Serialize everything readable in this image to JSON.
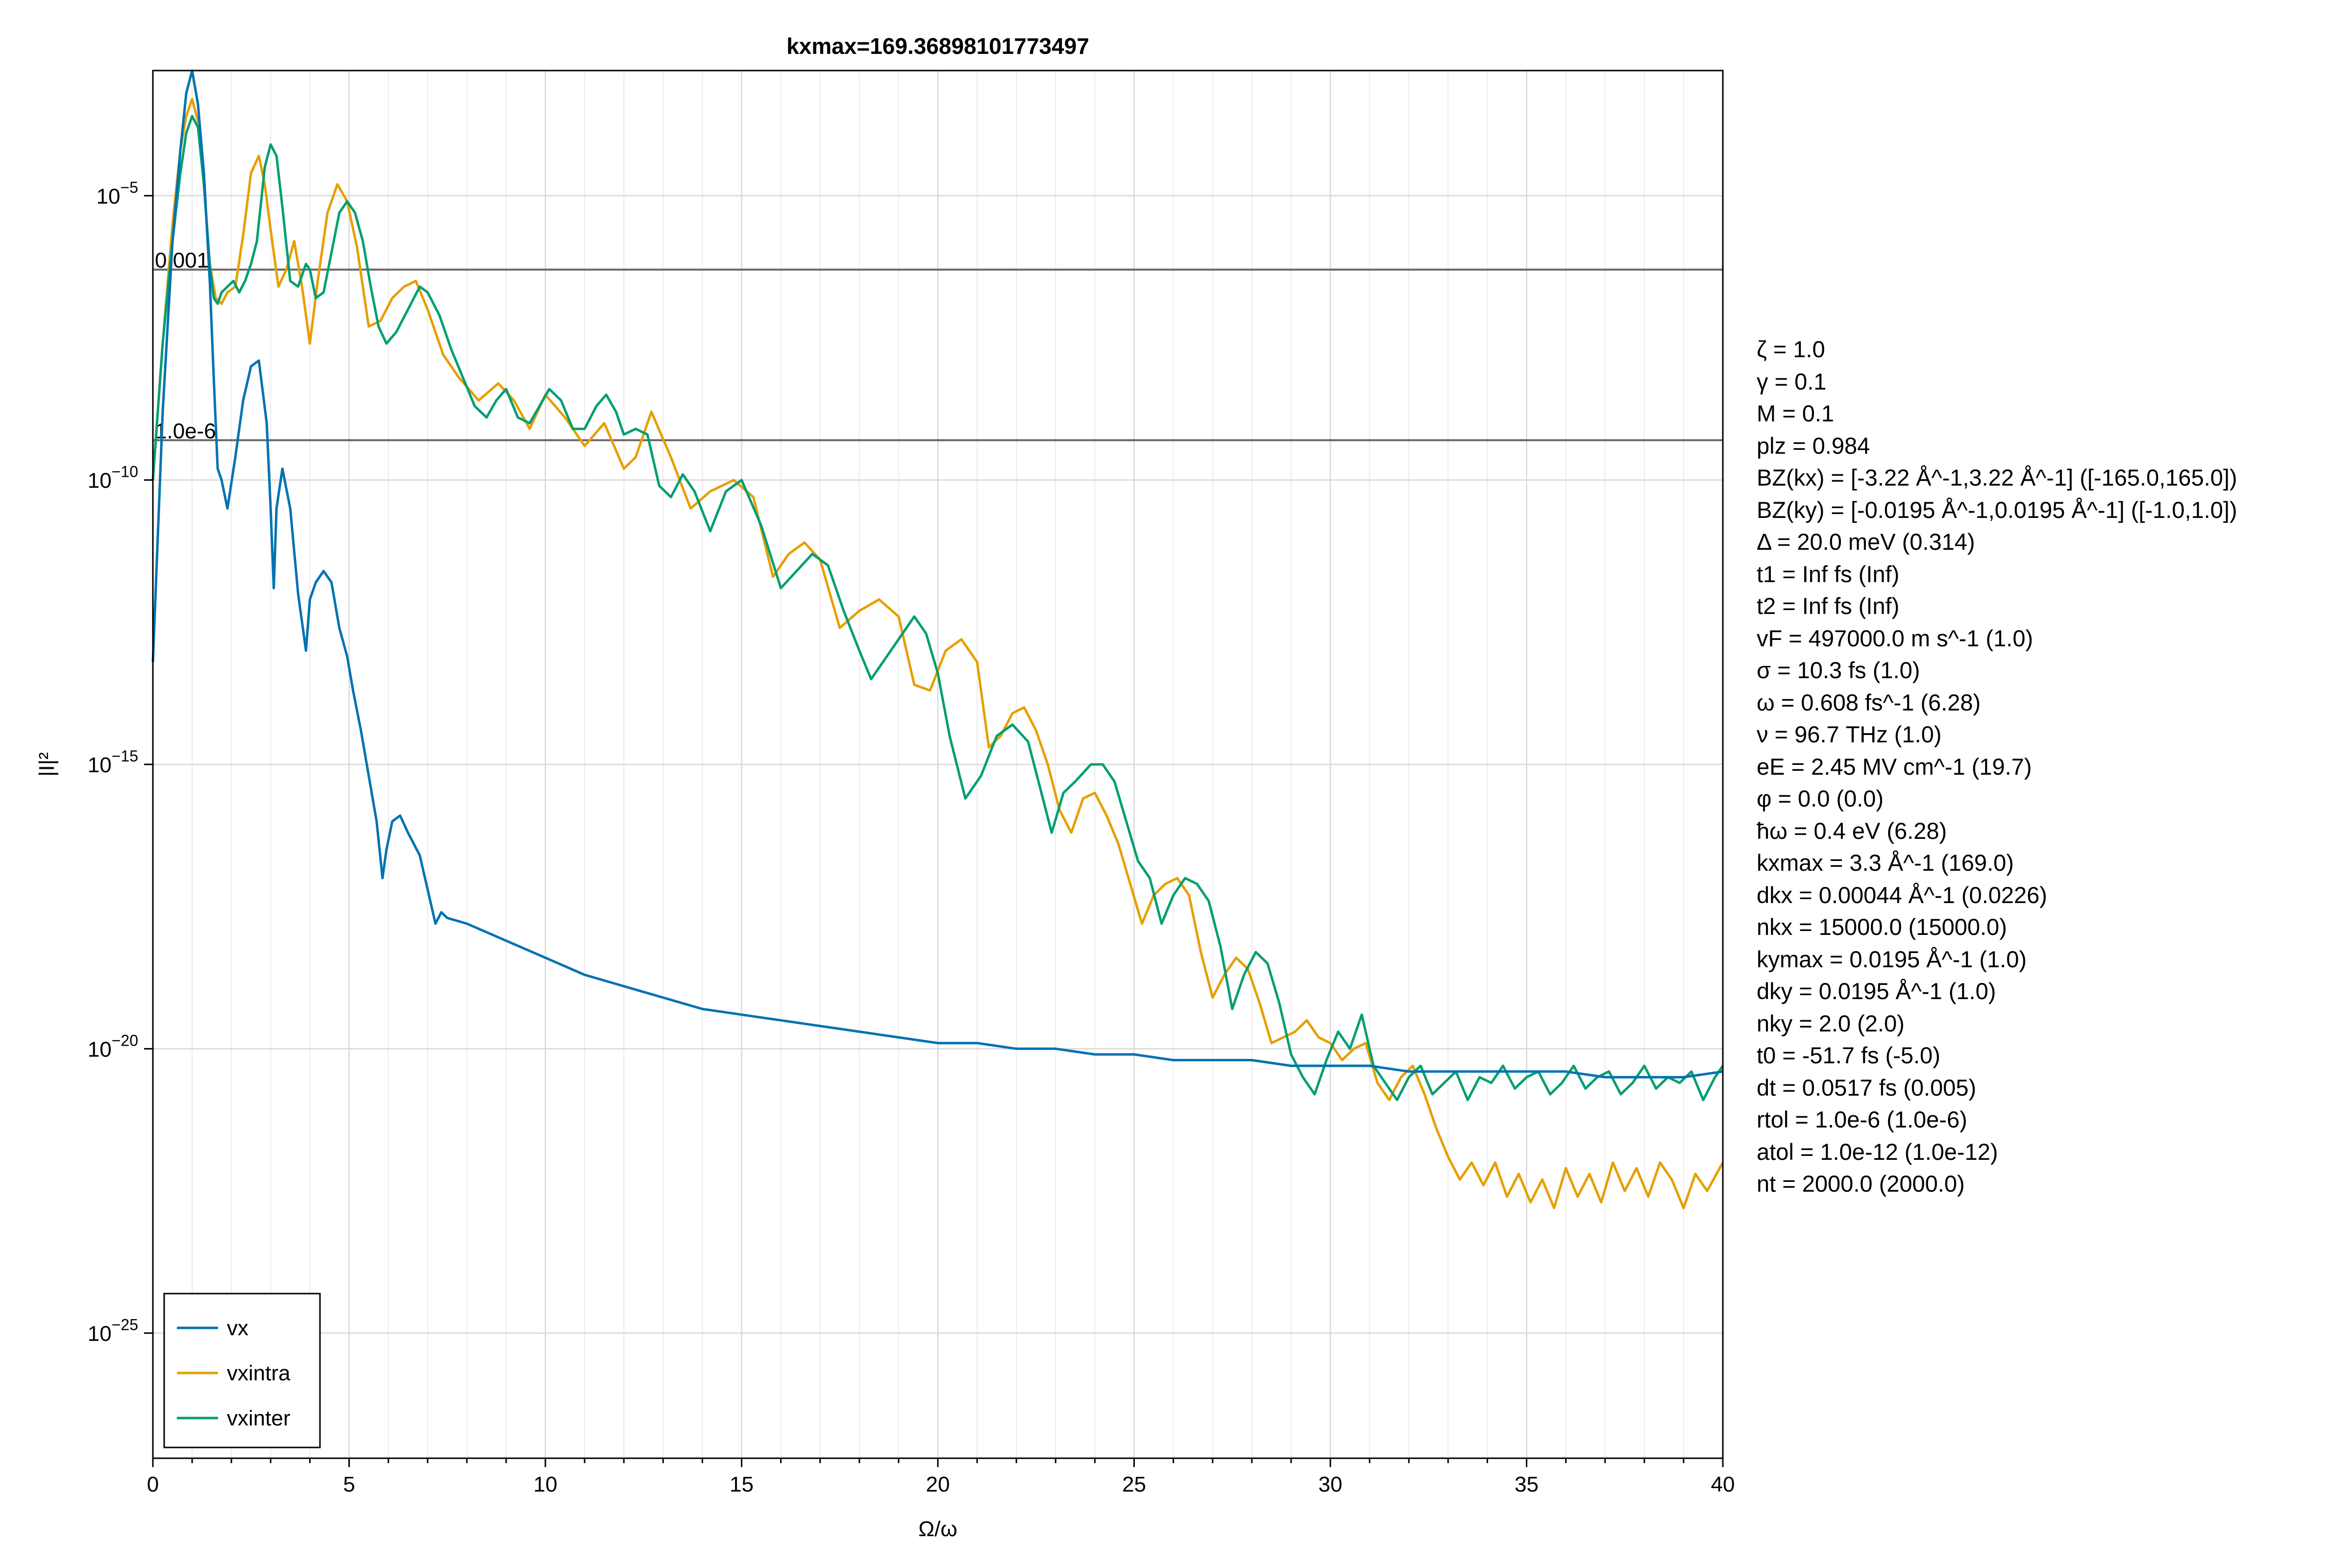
{
  "chart_data": {
    "type": "line",
    "title": "kxmax=169.36898101773497",
    "xlabel": "Ω/ω",
    "ylabel": "|I|²",
    "xlim": [
      0,
      40
    ],
    "ylim_log10": [
      -27.2,
      -2.8
    ],
    "yscale": "log",
    "grid": true,
    "x_ticks": [
      0,
      5,
      10,
      15,
      20,
      25,
      30,
      35,
      40
    ],
    "x_tick_labels": [
      "0",
      "5",
      "10",
      "15",
      "20",
      "25",
      "30",
      "35",
      "40"
    ],
    "y_ticks_log10": [
      -25,
      -20,
      -15,
      -10,
      -5
    ],
    "y_tick_labels": [
      {
        "base": "10",
        "exp": "−25"
      },
      {
        "base": "10",
        "exp": "−20"
      },
      {
        "base": "10",
        "exp": "−15"
      },
      {
        "base": "10",
        "exp": "−10"
      },
      {
        "base": "10",
        "exp": "−5"
      }
    ],
    "hlines": [
      {
        "label": "0.001",
        "log10": -6.3
      },
      {
        "label": "1.0e-6",
        "log10": -9.3
      }
    ],
    "legend_position": "bottom-left",
    "series": [
      {
        "name": "vx",
        "color": "#0072b2",
        "x": [
          0,
          0.25,
          0.5,
          0.7,
          0.85,
          1.0,
          1.15,
          1.3,
          1.45,
          1.55,
          1.65,
          1.75,
          1.9,
          2.1,
          2.3,
          2.5,
          2.7,
          2.9,
          3.0,
          3.08,
          3.15,
          3.3,
          3.5,
          3.7,
          3.9,
          4.0,
          4.15,
          4.35,
          4.55,
          4.75,
          4.95,
          5.1,
          5.3,
          5.5,
          5.7,
          5.85,
          5.95,
          6.1,
          6.3,
          6.5,
          6.8,
          7.0,
          7.2,
          7.35,
          7.5,
          8,
          9,
          10,
          11,
          12,
          13,
          14,
          15,
          16,
          17,
          18,
          19,
          20,
          21,
          22,
          23,
          24,
          25,
          26,
          27,
          28,
          29,
          30,
          31,
          32,
          33,
          34,
          35,
          36,
          37,
          38,
          39,
          40
        ],
        "log10": [
          -13.2,
          -8.8,
          -5.8,
          -4.2,
          -3.2,
          -2.8,
          -3.4,
          -4.6,
          -6.5,
          -8.2,
          -9.8,
          -10.0,
          -10.5,
          -9.6,
          -8.6,
          -8.0,
          -7.9,
          -9.0,
          -10.5,
          -11.9,
          -10.5,
          -9.8,
          -10.5,
          -12.0,
          -13.0,
          -12.1,
          -11.8,
          -11.6,
          -11.8,
          -12.6,
          -13.1,
          -13.7,
          -14.4,
          -15.2,
          -16.0,
          -17.0,
          -16.5,
          -16.0,
          -15.9,
          -16.2,
          -16.6,
          -17.2,
          -17.8,
          -17.6,
          -17.7,
          -17.8,
          -18.1,
          -18.4,
          -18.7,
          -18.9,
          -19.1,
          -19.3,
          -19.4,
          -19.5,
          -19.6,
          -19.7,
          -19.8,
          -19.9,
          -19.9,
          -20.0,
          -20.0,
          -20.1,
          -20.1,
          -20.2,
          -20.2,
          -20.2,
          -20.3,
          -20.3,
          -20.3,
          -20.4,
          -20.4,
          -20.4,
          -20.4,
          -20.4,
          -20.5,
          -20.5,
          -20.5,
          -20.4
        ]
      },
      {
        "name": "vxintra",
        "color": "#e69f00",
        "x": [
          0,
          0.25,
          0.5,
          0.7,
          0.85,
          1.0,
          1.15,
          1.3,
          1.45,
          1.6,
          1.75,
          1.9,
          2.1,
          2.3,
          2.5,
          2.7,
          2.85,
          3.0,
          3.2,
          3.4,
          3.6,
          3.8,
          4.0,
          4.2,
          4.45,
          4.7,
          4.95,
          5.2,
          5.5,
          5.8,
          6.1,
          6.4,
          6.7,
          7.0,
          7.4,
          7.8,
          8.3,
          8.8,
          9.2,
          9.6,
          10.0,
          10.5,
          11.0,
          11.5,
          12.0,
          12.3,
          12.7,
          13.2,
          13.7,
          14.2,
          14.8,
          15.3,
          15.8,
          16.2,
          16.6,
          17.0,
          17.5,
          18.0,
          18.5,
          19.0,
          19.4,
          19.8,
          20.2,
          20.6,
          21.0,
          21.3,
          21.6,
          21.9,
          22.2,
          22.5,
          22.8,
          23.1,
          23.4,
          23.7,
          24.0,
          24.3,
          24.6,
          24.9,
          25.2,
          25.5,
          25.8,
          26.1,
          26.4,
          26.7,
          27.0,
          27.3,
          27.6,
          27.9,
          28.2,
          28.5,
          28.8,
          29.1,
          29.4,
          29.7,
          30.0,
          30.3,
          30.6,
          30.9,
          31.2,
          31.5,
          31.8,
          32.1,
          32.4,
          32.7,
          33.0,
          33.3,
          33.6,
          33.9,
          34.2,
          34.5,
          34.8,
          35.1,
          35.4,
          35.7,
          36.0,
          36.3,
          36.6,
          36.9,
          37.2,
          37.5,
          37.8,
          38.1,
          38.4,
          38.7,
          39.0,
          39.3,
          39.6,
          40
        ],
        "log10": [
          -10.0,
          -7.6,
          -5.5,
          -4.2,
          -3.6,
          -3.3,
          -3.7,
          -4.8,
          -6.2,
          -6.8,
          -6.9,
          -6.7,
          -6.6,
          -5.7,
          -4.6,
          -4.3,
          -4.8,
          -5.6,
          -6.6,
          -6.3,
          -5.8,
          -6.6,
          -7.6,
          -6.5,
          -5.3,
          -4.8,
          -5.1,
          -5.9,
          -7.3,
          -7.2,
          -6.8,
          -6.6,
          -6.5,
          -7.0,
          -7.8,
          -8.2,
          -8.6,
          -8.3,
          -8.6,
          -9.1,
          -8.5,
          -8.9,
          -9.4,
          -9.0,
          -9.8,
          -9.6,
          -8.8,
          -9.6,
          -10.5,
          -10.2,
          -10.0,
          -10.3,
          -11.7,
          -11.3,
          -11.1,
          -11.4,
          -12.6,
          -12.3,
          -12.1,
          -12.4,
          -13.6,
          -13.7,
          -13.0,
          -12.8,
          -13.2,
          -14.7,
          -14.5,
          -14.1,
          -14.0,
          -14.4,
          -15.0,
          -15.8,
          -16.2,
          -15.6,
          -15.5,
          -15.9,
          -16.4,
          -17.1,
          -17.8,
          -17.3,
          -17.1,
          -17.0,
          -17.3,
          -18.3,
          -19.1,
          -18.7,
          -18.4,
          -18.6,
          -19.2,
          -19.9,
          -19.8,
          -19.7,
          -19.5,
          -19.8,
          -19.9,
          -20.2,
          -20.0,
          -19.9,
          -20.6,
          -20.9,
          -20.5,
          -20.3,
          -20.8,
          -21.4,
          -21.9,
          -22.3,
          -22.0,
          -22.4,
          -22.0,
          -22.6,
          -22.2,
          -22.7,
          -22.3,
          -22.8,
          -22.1,
          -22.6,
          -22.2,
          -22.7,
          -22.0,
          -22.5,
          -22.1,
          -22.6,
          -22.0,
          -22.3,
          -22.8,
          -22.2,
          -22.5,
          -22.0
        ]
      },
      {
        "name": "vxinter",
        "color": "#009e73",
        "x": [
          0,
          0.25,
          0.5,
          0.7,
          0.85,
          1.0,
          1.15,
          1.3,
          1.45,
          1.55,
          1.65,
          1.75,
          1.9,
          2.05,
          2.2,
          2.35,
          2.5,
          2.65,
          2.85,
          3.0,
          3.15,
          3.3,
          3.5,
          3.7,
          3.9,
          4.0,
          4.15,
          4.35,
          4.55,
          4.75,
          4.95,
          5.15,
          5.35,
          5.55,
          5.75,
          5.95,
          6.2,
          6.5,
          6.8,
          7.0,
          7.3,
          7.6,
          7.9,
          8.2,
          8.5,
          8.75,
          9.0,
          9.3,
          9.6,
          9.85,
          10.1,
          10.4,
          10.7,
          11.0,
          11.3,
          11.55,
          11.8,
          12.0,
          12.3,
          12.6,
          12.9,
          13.2,
          13.5,
          13.8,
          14.2,
          14.6,
          15.0,
          15.5,
          16.0,
          16.4,
          16.8,
          17.2,
          17.6,
          18.0,
          18.3,
          18.6,
          19.0,
          19.4,
          19.7,
          20.0,
          20.3,
          20.7,
          21.1,
          21.5,
          21.9,
          22.3,
          22.6,
          22.9,
          23.2,
          23.5,
          23.9,
          24.2,
          24.5,
          24.8,
          25.1,
          25.4,
          25.7,
          26.0,
          26.3,
          26.6,
          26.9,
          27.2,
          27.5,
          27.8,
          28.1,
          28.4,
          28.7,
          29.0,
          29.3,
          29.6,
          29.9,
          30.2,
          30.5,
          30.8,
          31.1,
          31.4,
          31.7,
          32.0,
          32.3,
          32.6,
          32.9,
          33.2,
          33.5,
          33.8,
          34.1,
          34.4,
          34.7,
          35.0,
          35.3,
          35.6,
          35.9,
          36.2,
          36.5,
          36.8,
          37.1,
          37.4,
          37.7,
          38.0,
          38.3,
          38.6,
          38.9,
          39.2,
          39.5,
          39.8,
          40
        ],
        "log10": [
          -10.0,
          -7.6,
          -5.8,
          -4.6,
          -3.9,
          -3.6,
          -3.8,
          -4.8,
          -6.2,
          -6.8,
          -6.9,
          -6.7,
          -6.6,
          -6.5,
          -6.7,
          -6.5,
          -6.2,
          -5.8,
          -4.5,
          -4.1,
          -4.3,
          -5.2,
          -6.5,
          -6.6,
          -6.2,
          -6.3,
          -6.8,
          -6.7,
          -6.0,
          -5.3,
          -5.1,
          -5.3,
          -5.8,
          -6.6,
          -7.3,
          -7.6,
          -7.4,
          -7.0,
          -6.6,
          -6.7,
          -7.1,
          -7.7,
          -8.2,
          -8.7,
          -8.9,
          -8.6,
          -8.4,
          -8.9,
          -9.0,
          -8.7,
          -8.4,
          -8.6,
          -9.1,
          -9.1,
          -8.7,
          -8.5,
          -8.8,
          -9.2,
          -9.1,
          -9.2,
          -10.1,
          -10.3,
          -9.9,
          -10.2,
          -10.9,
          -10.2,
          -10.0,
          -10.8,
          -11.9,
          -11.6,
          -11.3,
          -11.5,
          -12.3,
          -13.0,
          -13.5,
          -13.2,
          -12.8,
          -12.4,
          -12.7,
          -13.4,
          -14.5,
          -15.6,
          -15.2,
          -14.5,
          -14.3,
          -14.6,
          -15.4,
          -16.2,
          -15.5,
          -15.3,
          -15.0,
          -15.0,
          -15.3,
          -16.0,
          -16.7,
          -17.0,
          -17.8,
          -17.3,
          -17.0,
          -17.1,
          -17.4,
          -18.2,
          -19.3,
          -18.7,
          -18.3,
          -18.5,
          -19.2,
          -20.1,
          -20.5,
          -20.8,
          -20.2,
          -19.7,
          -20.0,
          -19.4,
          -20.3,
          -20.6,
          -20.9,
          -20.5,
          -20.3,
          -20.8,
          -20.6,
          -20.4,
          -20.9,
          -20.5,
          -20.6,
          -20.3,
          -20.7,
          -20.5,
          -20.4,
          -20.8,
          -20.6,
          -20.3,
          -20.7,
          -20.5,
          -20.4,
          -20.8,
          -20.6,
          -20.3,
          -20.7,
          -20.5,
          -20.6,
          -20.4,
          -20.9,
          -20.5,
          -20.3
        ]
      }
    ]
  },
  "params": [
    "ζ = 1.0",
    "γ = 0.1",
    "M = 0.1",
    "plz = 0.984",
    "BZ(kx) = [-3.22 Å^-1,3.22 Å^-1] ([-165.0,165.0])",
    "BZ(ky) = [-0.0195 Å^-1,0.0195 Å^-1] ([-1.0,1.0])",
    "Δ = 20.0 meV (0.314)",
    "t1 = Inf fs (Inf)",
    "t2 = Inf fs (Inf)",
    "vF = 497000.0 m s^-1 (1.0)",
    "σ = 10.3 fs (1.0)",
    "ω = 0.608 fs^-1 (6.28)",
    "ν = 96.7 THz (1.0)",
    "eE = 2.45 MV cm^-1 (19.7)",
    "φ = 0.0 (0.0)",
    "ħω = 0.4 eV (6.28)",
    "kxmax = 3.3 Å^-1 (169.0)",
    "dkx = 0.00044 Å^-1 (0.0226)",
    "nkx = 15000.0 (15000.0)",
    "kymax = 0.0195 Å^-1 (1.0)",
    "dky = 0.0195 Å^-1 (1.0)",
    "nky = 2.0 (2.0)",
    "t0 = -51.7 fs (-5.0)",
    "dt = 0.0517 fs (0.005)",
    "rtol = 1.0e-6 (1.0e-6)",
    "atol = 1.0e-12 (1.0e-12)",
    "nt = 2000.0 (2000.0)"
  ]
}
